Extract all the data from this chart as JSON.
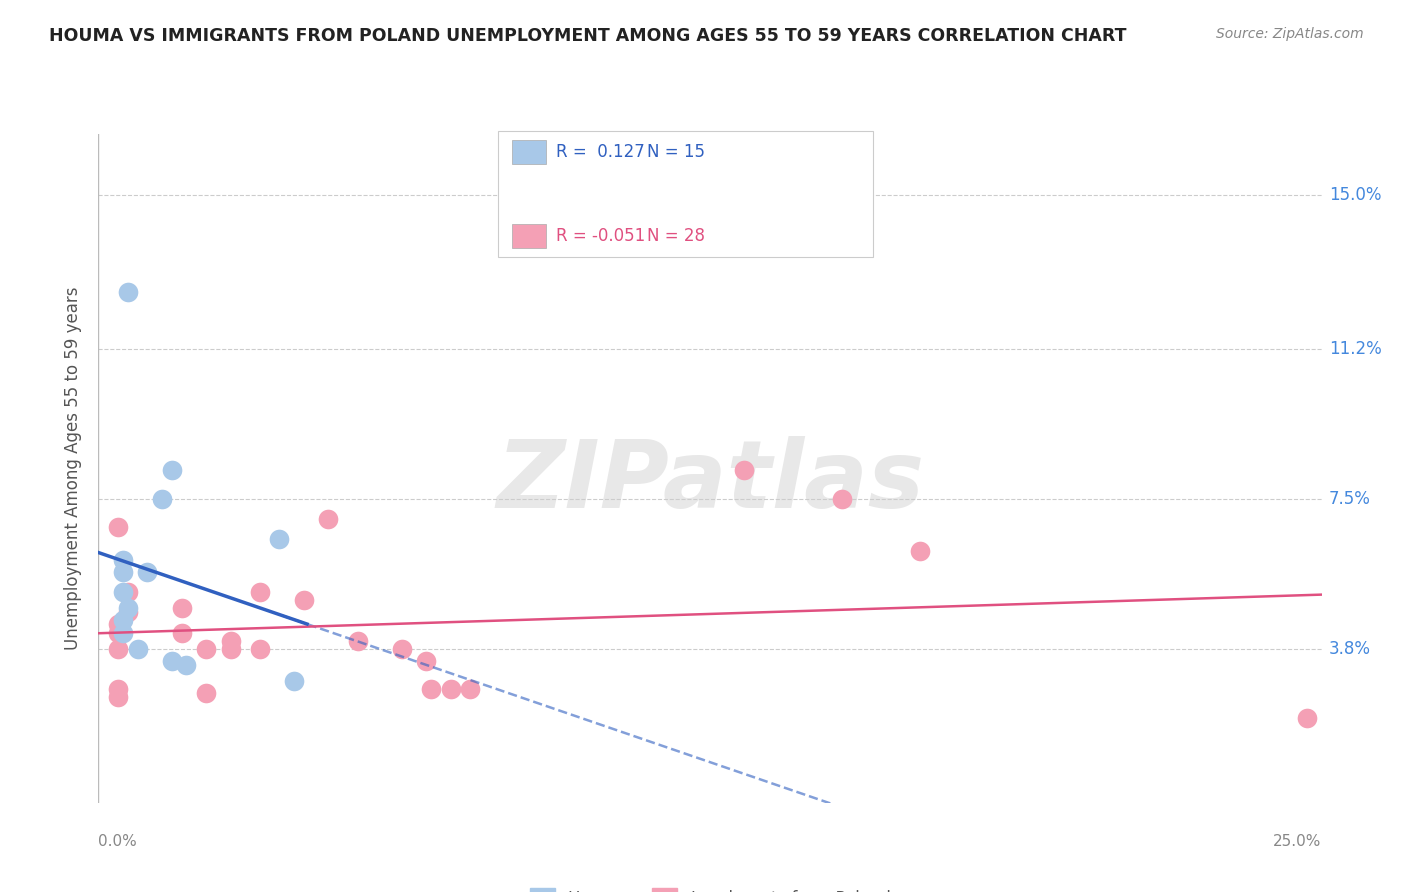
{
  "title": "HOUMA VS IMMIGRANTS FROM POLAND UNEMPLOYMENT AMONG AGES 55 TO 59 YEARS CORRELATION CHART",
  "source": "Source: ZipAtlas.com",
  "ylabel": "Unemployment Among Ages 55 to 59 years",
  "ytick_labels": [
    "15.0%",
    "11.2%",
    "7.5%",
    "3.8%"
  ],
  "ytick_values": [
    0.15,
    0.112,
    0.075,
    0.038
  ],
  "xmin": 0.0,
  "xmax": 0.25,
  "ymin": 0.0,
  "ymax": 0.165,
  "watermark": "ZIPatlas",
  "houma_color": "#a8c8e8",
  "poland_color": "#f4a0b5",
  "houma_line_color": "#3060c0",
  "poland_line_color": "#e05080",
  "legend_R1": "R =  0.127",
  "legend_N1": "N = 15",
  "legend_R2": "R = -0.051",
  "legend_N2": "N = 28",
  "legend_text_color_blue": "#3060c0",
  "legend_text_color_pink": "#e05080",
  "houma_scatter": [
    [
      0.006,
      0.126
    ],
    [
      0.013,
      0.075
    ],
    [
      0.015,
      0.082
    ],
    [
      0.005,
      0.06
    ],
    [
      0.005,
      0.057
    ],
    [
      0.005,
      0.052
    ],
    [
      0.006,
      0.048
    ],
    [
      0.005,
      0.045
    ],
    [
      0.005,
      0.042
    ],
    [
      0.037,
      0.065
    ],
    [
      0.015,
      0.035
    ],
    [
      0.018,
      0.034
    ],
    [
      0.04,
      0.03
    ],
    [
      0.008,
      0.038
    ],
    [
      0.01,
      0.057
    ]
  ],
  "poland_scatter": [
    [
      0.004,
      0.068
    ],
    [
      0.006,
      0.052
    ],
    [
      0.006,
      0.047
    ],
    [
      0.004,
      0.044
    ],
    [
      0.004,
      0.042
    ],
    [
      0.004,
      0.038
    ],
    [
      0.004,
      0.028
    ],
    [
      0.004,
      0.026
    ],
    [
      0.017,
      0.048
    ],
    [
      0.017,
      0.042
    ],
    [
      0.022,
      0.038
    ],
    [
      0.022,
      0.027
    ],
    [
      0.027,
      0.04
    ],
    [
      0.027,
      0.038
    ],
    [
      0.033,
      0.052
    ],
    [
      0.033,
      0.038
    ],
    [
      0.042,
      0.05
    ],
    [
      0.047,
      0.07
    ],
    [
      0.053,
      0.04
    ],
    [
      0.062,
      0.038
    ],
    [
      0.067,
      0.035
    ],
    [
      0.068,
      0.028
    ],
    [
      0.072,
      0.028
    ],
    [
      0.076,
      0.028
    ],
    [
      0.132,
      0.082
    ],
    [
      0.152,
      0.075
    ],
    [
      0.168,
      0.062
    ],
    [
      0.247,
      0.021
    ]
  ]
}
